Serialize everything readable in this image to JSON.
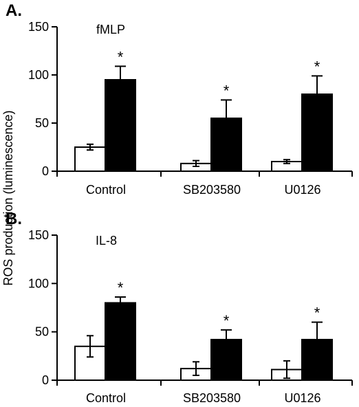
{
  "colors": {
    "control_bar": "#ffffff",
    "stimulated_bar": "#000000",
    "axis": "#000000"
  },
  "shared_ylabel": "ROS production (luminescence)",
  "chart_data": [
    {
      "type": "bar",
      "panel": "A.",
      "title": "fMLP",
      "categories": [
        "Control",
        "SB203580",
        "U0126"
      ],
      "ylim": [
        0,
        150
      ],
      "yticks": [
        "0",
        "50",
        "100",
        "150"
      ],
      "grid": false,
      "series": [
        {
          "values": [
            25,
            8,
            10
          ],
          "errors": [
            3,
            3,
            2
          ],
          "color": "#ffffff"
        },
        {
          "values": [
            95,
            55,
            80
          ],
          "errors": [
            14,
            19,
            19
          ],
          "color": "#000000",
          "significance": [
            "*",
            "*",
            "*"
          ]
        }
      ]
    },
    {
      "type": "bar",
      "panel": "B.",
      "title": "IL-8",
      "categories": [
        "Control",
        "SB203580",
        "U0126"
      ],
      "ylim": [
        0,
        150
      ],
      "yticks": [
        "0",
        "50",
        "100",
        "150"
      ],
      "grid": false,
      "series": [
        {
          "values": [
            35,
            12,
            11
          ],
          "errors": [
            11,
            7,
            9
          ],
          "color": "#ffffff"
        },
        {
          "values": [
            80,
            42,
            42
          ],
          "errors": [
            6,
            10,
            18
          ],
          "color": "#000000",
          "significance": [
            "*",
            "*",
            "*"
          ]
        }
      ]
    }
  ]
}
